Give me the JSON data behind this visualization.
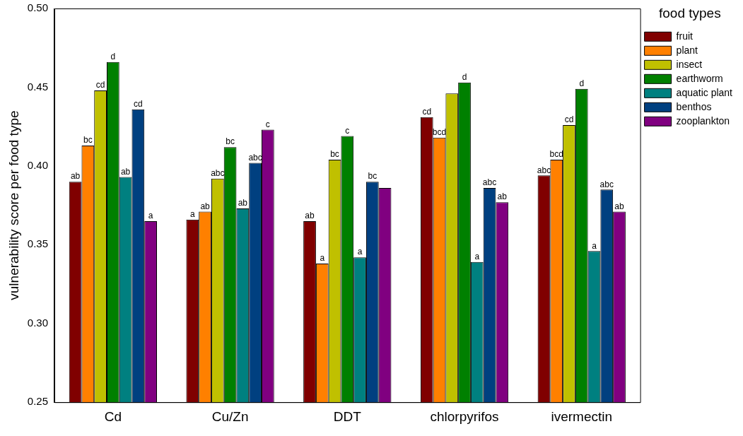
{
  "chart_data": {
    "type": "bar",
    "xlabel": null,
    "ylabel": "vulnerability score per food type",
    "legend_title": "food types",
    "legend": "right",
    "grid": false,
    "categories": [
      "Cd",
      "Cu/Zn",
      "DDT",
      "chlorpyrifos",
      "ivermectin"
    ],
    "ylim": [
      0.25,
      0.5
    ],
    "yticks": [
      {
        "value": 0.25,
        "label": "0.25"
      },
      {
        "value": 0.3,
        "label": "0.30"
      },
      {
        "value": 0.35,
        "label": "0.35"
      },
      {
        "value": 0.4,
        "label": "0.40"
      },
      {
        "value": 0.45,
        "label": "0.45"
      },
      {
        "value": 0.5,
        "label": "0.50"
      }
    ],
    "series": [
      {
        "name": "fruit",
        "color": "#800000",
        "values": [
          0.39,
          0.366,
          0.365,
          0.431,
          0.394
        ],
        "value_labels": [
          "ab",
          "a",
          "ab",
          "cd",
          "abc"
        ]
      },
      {
        "name": "plant",
        "color": "#ff8000",
        "values": [
          0.413,
          0.371,
          0.338,
          0.418,
          0.404
        ],
        "value_labels": [
          "bc",
          "ab",
          "a",
          "bcd",
          "bcd"
        ]
      },
      {
        "name": "insect",
        "color": "#c0c000",
        "values": [
          0.448,
          0.392,
          0.404,
          0.446,
          0.426
        ],
        "value_labels": [
          "cd",
          "abc",
          "bc",
          null,
          "cd"
        ]
      },
      {
        "name": "earthworm",
        "color": "#008000",
        "values": [
          0.466,
          0.412,
          0.419,
          0.453,
          0.449
        ],
        "value_labels": [
          "d",
          "bc",
          "c",
          "d",
          "d"
        ]
      },
      {
        "name": "aquatic plant",
        "color": "#008080",
        "values": [
          0.393,
          0.373,
          0.342,
          0.339,
          0.346
        ],
        "value_labels": [
          "ab",
          "ab",
          "a",
          "a",
          "a"
        ]
      },
      {
        "name": "benthos",
        "color": "#004080",
        "values": [
          0.436,
          0.402,
          0.39,
          0.386,
          0.385
        ],
        "value_labels": [
          "cd",
          "abc",
          "bc",
          "abc",
          "abc"
        ]
      },
      {
        "name": "zooplankton",
        "color": "#800080",
        "values": [
          0.365,
          0.423,
          0.386,
          0.377,
          0.371
        ],
        "value_labels": [
          "a",
          "c",
          null,
          "ab",
          "ab"
        ]
      }
    ]
  }
}
